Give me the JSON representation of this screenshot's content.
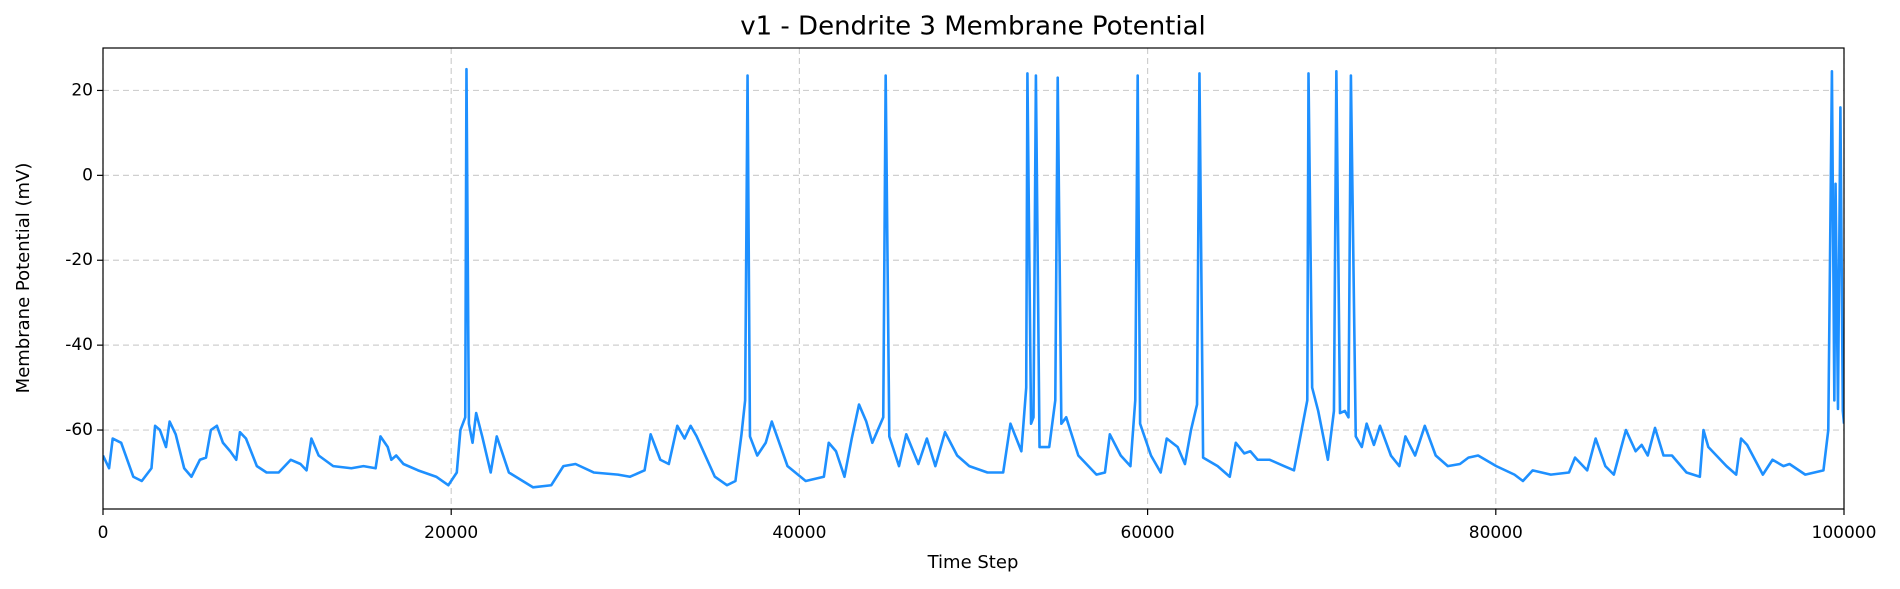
{
  "chart_data": {
    "type": "line",
    "title": "v1 - Dendrite 3 Membrane Potential",
    "xlabel": "Time Step",
    "ylabel": "Membrane Potential (mV)",
    "xlim": [
      0,
      100000
    ],
    "xticks": [
      0,
      20000,
      40000,
      60000,
      80000,
      100000
    ],
    "ylim": [
      -78.6,
      30
    ],
    "yticks": [
      -60,
      -40,
      -20,
      0,
      20
    ],
    "grid": true,
    "series": [
      {
        "color": "#1e90ff",
        "x": [
          0,
          348,
          557,
          1044,
          1740,
          2227,
          2784,
          2992,
          3271,
          3619,
          3827,
          4175,
          4663,
          5080,
          5567,
          5915,
          6194,
          6541,
          6889,
          7307,
          7655,
          7864,
          8212,
          8838,
          9395,
          10091,
          10786,
          11343,
          11691,
          11969,
          12387,
          13222,
          14266,
          14962,
          15658,
          15936,
          16354,
          16562,
          16841,
          17258,
          18093,
          19137,
          19834,
          20321,
          20529,
          20807,
          20877,
          21016,
          21225,
          21434,
          21782,
          22269,
          22617,
          23313,
          24705,
          25748,
          26444,
          27140,
          28184,
          29576,
          30272,
          31107,
          31455,
          32011,
          32499,
          32986,
          33403,
          33751,
          34099,
          35143,
          35839,
          36326,
          36674,
          36883,
          37022,
          37161,
          37579,
          38066,
          38414,
          39318,
          40362,
          41406,
          41684,
          42102,
          42589,
          43006,
          43424,
          43841,
          44189,
          44816,
          44955,
          45164,
          45720,
          46138,
          46834,
          47321,
          47808,
          48365,
          49061,
          49757,
          50801,
          51705,
          52123,
          52749,
          53028,
          53097,
          53306,
          53445,
          53584,
          53793,
          54350,
          54698,
          54837,
          55046,
          55325,
          56020,
          57064,
          57551,
          57830,
          58456,
          59013,
          59291,
          59430,
          59569,
          60195,
          60752,
          61100,
          61726,
          62144,
          62492,
          62840,
          62979,
          63188,
          64023,
          64719,
          65067,
          65554,
          65902,
          66319,
          67015,
          67850,
          68407,
          68894,
          69172,
          69242,
          69451,
          69799,
          70355,
          70703,
          70842,
          71051,
          71330,
          71538,
          71677,
          71956,
          72304,
          72582,
          73000,
          73348,
          73974,
          74461,
          74809,
          75366,
          75922,
          76549,
          77244,
          77940,
          78428,
          78984,
          80028,
          81072,
          81559,
          82116,
          83160,
          84204,
          84552,
          85248,
          85735,
          86292,
          86779,
          87475,
          88031,
          88379,
          88727,
          89145,
          89632,
          90119,
          90954,
          91720,
          91929,
          92207,
          93251,
          93808,
          94086,
          94434,
          95339,
          95895,
          96522,
          96870,
          97775,
          98819,
          99097,
          99306,
          99445,
          99515,
          99654,
          99793,
          99932,
          100000
        ],
        "values": [
          -66,
          -69,
          -62,
          -63,
          -71,
          -72,
          -69,
          -59,
          -60,
          -64,
          -58,
          -61,
          -69,
          -71,
          -67,
          -66.5,
          -60,
          -59,
          -63,
          -65,
          -67,
          -60.5,
          -62,
          -68.5,
          -70,
          -70,
          -67,
          -68,
          -69.5,
          -62,
          -66,
          -68.5,
          -69,
          -68.5,
          -69,
          -61.5,
          -64,
          -67,
          -66,
          -68,
          -69.5,
          -71,
          -73,
          -70,
          -60,
          -57,
          25,
          -58.5,
          -63,
          -56,
          -61.5,
          -70,
          -61.5,
          -70,
          -73.5,
          -73,
          -68.5,
          -68,
          -70,
          -70.5,
          -71,
          -69.5,
          -61,
          -67,
          -68,
          -59,
          -62,
          -59,
          -61.5,
          -71,
          -73,
          -72,
          -61,
          -53,
          23.5,
          -61.5,
          -66,
          -63,
          -58,
          -68.5,
          -72,
          -71,
          -63,
          -65,
          -71,
          -62,
          -54,
          -58,
          -63,
          -57,
          23.5,
          -61.5,
          -68.5,
          -61,
          -68,
          -62,
          -68.5,
          -60.5,
          -66,
          -68.5,
          -70,
          -70,
          -58.5,
          -65,
          -50,
          24,
          -58.5,
          -57,
          23.5,
          -64,
          -64,
          -53,
          23,
          -58.5,
          -57,
          -66,
          -70.5,
          -70,
          -61,
          -66,
          -68.5,
          -53,
          23.5,
          -58.5,
          -66,
          -70,
          -62,
          -64,
          -68,
          -60,
          -54,
          24,
          -66.5,
          -68.5,
          -71,
          -63,
          -65.5,
          -65,
          -67,
          -67,
          -68.5,
          -69.5,
          -59,
          -53,
          24,
          -50,
          -55.5,
          -67,
          -55.5,
          24.5,
          -56,
          -55.5,
          -57,
          23.5,
          -61.5,
          -64,
          -58.5,
          -63.5,
          -59,
          -66,
          -68.5,
          -61.5,
          -66,
          -59,
          -66,
          -68.5,
          -68,
          -66.5,
          -66,
          -68.5,
          -70.5,
          -72,
          -69.5,
          -70.5,
          -70,
          -66.5,
          -69.5,
          -62,
          -68.5,
          -70.5,
          -60,
          -65,
          -63.5,
          -66,
          -59.5,
          -66,
          -66,
          -70,
          -71,
          -60,
          -64,
          -68.5,
          -70.5,
          -62,
          -63.5,
          -70.5,
          -67,
          -68.5,
          -68,
          -70.5,
          -69.5,
          -60,
          24.5,
          -53,
          -2,
          -55,
          16,
          -55.5,
          -58.5
        ]
      }
    ]
  }
}
